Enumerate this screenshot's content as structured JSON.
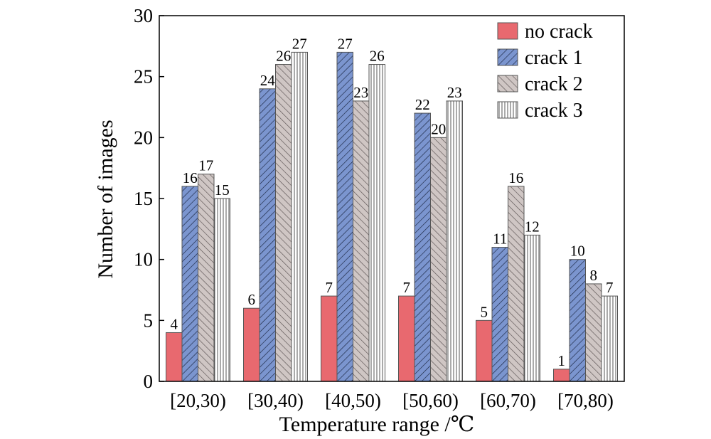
{
  "chart_data": {
    "type": "bar",
    "title": "",
    "xlabel": "Temperature range /℃",
    "ylabel": "Number of images",
    "categories": [
      "[20,30)",
      "[30,40)",
      "[40,50)",
      "[50,60)",
      "[60,70)",
      "[70,80)"
    ],
    "series": [
      {
        "name": "no crack",
        "values": [
          4,
          6,
          7,
          7,
          5,
          1
        ],
        "color": "#e8696f",
        "pattern": "solid"
      },
      {
        "name": "crack 1",
        "values": [
          16,
          24,
          27,
          22,
          11,
          10
        ],
        "color": "#7b95cf",
        "pattern": "backslash-hatch"
      },
      {
        "name": "crack 2",
        "values": [
          17,
          26,
          23,
          20,
          16,
          8
        ],
        "color": "#cfc6c4",
        "pattern": "slash-hatch"
      },
      {
        "name": "crack 3",
        "values": [
          15,
          27,
          26,
          23,
          12,
          7
        ],
        "color": "#ffffff",
        "pattern": "vertical-lines"
      }
    ],
    "ylim": [
      0,
      30
    ],
    "yticks": [
      0,
      5,
      10,
      15,
      20,
      25,
      30
    ],
    "data_labels": true,
    "legend_position": "top-right",
    "grid": false
  }
}
